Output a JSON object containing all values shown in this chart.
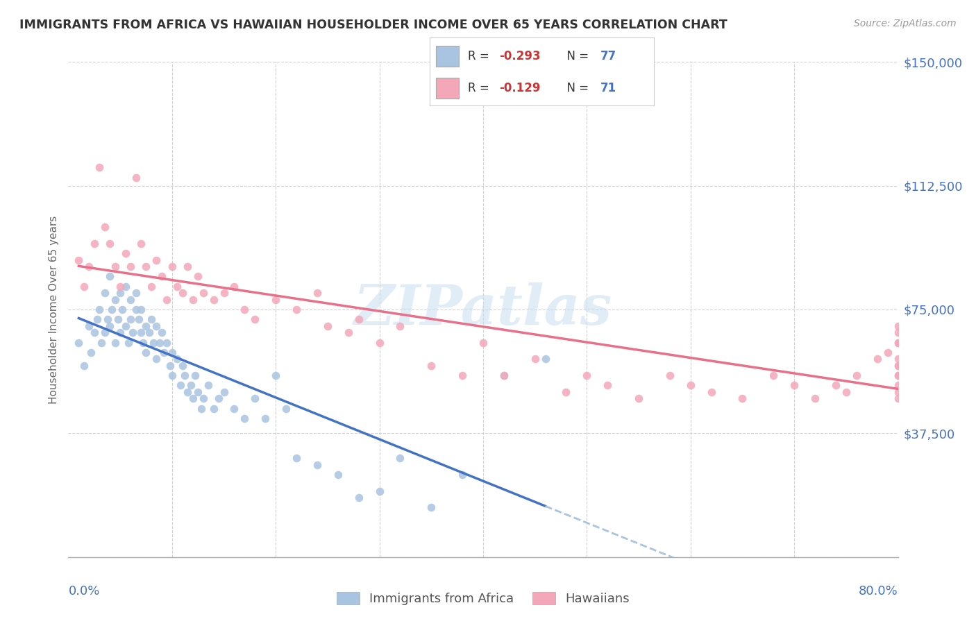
{
  "title": "IMMIGRANTS FROM AFRICA VS HAWAIIAN HOUSEHOLDER INCOME OVER 65 YEARS CORRELATION CHART",
  "source": "Source: ZipAtlas.com",
  "ylabel": "Householder Income Over 65 years",
  "yticks": [
    0,
    37500,
    75000,
    112500,
    150000
  ],
  "ytick_labels": [
    "",
    "$37,500",
    "$75,000",
    "$112,500",
    "$150,000"
  ],
  "xlim": [
    0.0,
    0.8
  ],
  "ylim": [
    0,
    150000
  ],
  "watermark": "ZIPatlas",
  "africa_color": "#a8c4e0",
  "hawaii_color": "#f4a7b9",
  "africa_line_color": "#4472c4",
  "hawaii_line_color": "#e8708a",
  "dashed_line_color": "#a8c4e0",
  "axis_label_color": "#4472c4",
  "grid_color": "#d0d0d0",
  "background_color": "#ffffff",
  "africa_x": [
    0.01,
    0.015,
    0.02,
    0.022,
    0.025,
    0.028,
    0.03,
    0.032,
    0.035,
    0.035,
    0.038,
    0.04,
    0.04,
    0.042,
    0.045,
    0.045,
    0.048,
    0.05,
    0.05,
    0.052,
    0.055,
    0.055,
    0.058,
    0.06,
    0.06,
    0.062,
    0.065,
    0.065,
    0.068,
    0.07,
    0.07,
    0.072,
    0.075,
    0.075,
    0.078,
    0.08,
    0.082,
    0.085,
    0.085,
    0.088,
    0.09,
    0.092,
    0.095,
    0.098,
    0.1,
    0.1,
    0.105,
    0.108,
    0.11,
    0.112,
    0.115,
    0.118,
    0.12,
    0.122,
    0.125,
    0.128,
    0.13,
    0.135,
    0.14,
    0.145,
    0.15,
    0.16,
    0.17,
    0.18,
    0.19,
    0.2,
    0.21,
    0.22,
    0.24,
    0.26,
    0.28,
    0.3,
    0.32,
    0.35,
    0.38,
    0.42,
    0.46
  ],
  "africa_y": [
    65000,
    58000,
    70000,
    62000,
    68000,
    72000,
    75000,
    65000,
    80000,
    68000,
    72000,
    85000,
    70000,
    75000,
    78000,
    65000,
    72000,
    80000,
    68000,
    75000,
    82000,
    70000,
    65000,
    78000,
    72000,
    68000,
    75000,
    80000,
    72000,
    68000,
    75000,
    65000,
    70000,
    62000,
    68000,
    72000,
    65000,
    70000,
    60000,
    65000,
    68000,
    62000,
    65000,
    58000,
    62000,
    55000,
    60000,
    52000,
    58000,
    55000,
    50000,
    52000,
    48000,
    55000,
    50000,
    45000,
    48000,
    52000,
    45000,
    48000,
    50000,
    45000,
    42000,
    48000,
    42000,
    55000,
    45000,
    30000,
    28000,
    25000,
    18000,
    20000,
    30000,
    15000,
    25000,
    55000,
    60000
  ],
  "hawaii_x": [
    0.01,
    0.015,
    0.02,
    0.025,
    0.03,
    0.035,
    0.04,
    0.045,
    0.05,
    0.055,
    0.06,
    0.065,
    0.07,
    0.075,
    0.08,
    0.085,
    0.09,
    0.095,
    0.1,
    0.105,
    0.11,
    0.115,
    0.12,
    0.125,
    0.13,
    0.14,
    0.15,
    0.16,
    0.17,
    0.18,
    0.2,
    0.22,
    0.24,
    0.25,
    0.27,
    0.28,
    0.3,
    0.32,
    0.35,
    0.38,
    0.4,
    0.42,
    0.45,
    0.48,
    0.5,
    0.52,
    0.55,
    0.58,
    0.6,
    0.62,
    0.65,
    0.68,
    0.7,
    0.72,
    0.74,
    0.75,
    0.76,
    0.78,
    0.79,
    0.8,
    0.8,
    0.8,
    0.8,
    0.8,
    0.8,
    0.8,
    0.8,
    0.8,
    0.8,
    0.8,
    0.8
  ],
  "hawaii_y": [
    90000,
    82000,
    88000,
    95000,
    118000,
    100000,
    95000,
    88000,
    82000,
    92000,
    88000,
    115000,
    95000,
    88000,
    82000,
    90000,
    85000,
    78000,
    88000,
    82000,
    80000,
    88000,
    78000,
    85000,
    80000,
    78000,
    80000,
    82000,
    75000,
    72000,
    78000,
    75000,
    80000,
    70000,
    68000,
    72000,
    65000,
    70000,
    58000,
    55000,
    65000,
    55000,
    60000,
    50000,
    55000,
    52000,
    48000,
    55000,
    52000,
    50000,
    48000,
    55000,
    52000,
    48000,
    52000,
    50000,
    55000,
    60000,
    62000,
    68000,
    58000,
    52000,
    48000,
    55000,
    60000,
    65000,
    70000,
    58000,
    50000,
    65000,
    55000
  ]
}
